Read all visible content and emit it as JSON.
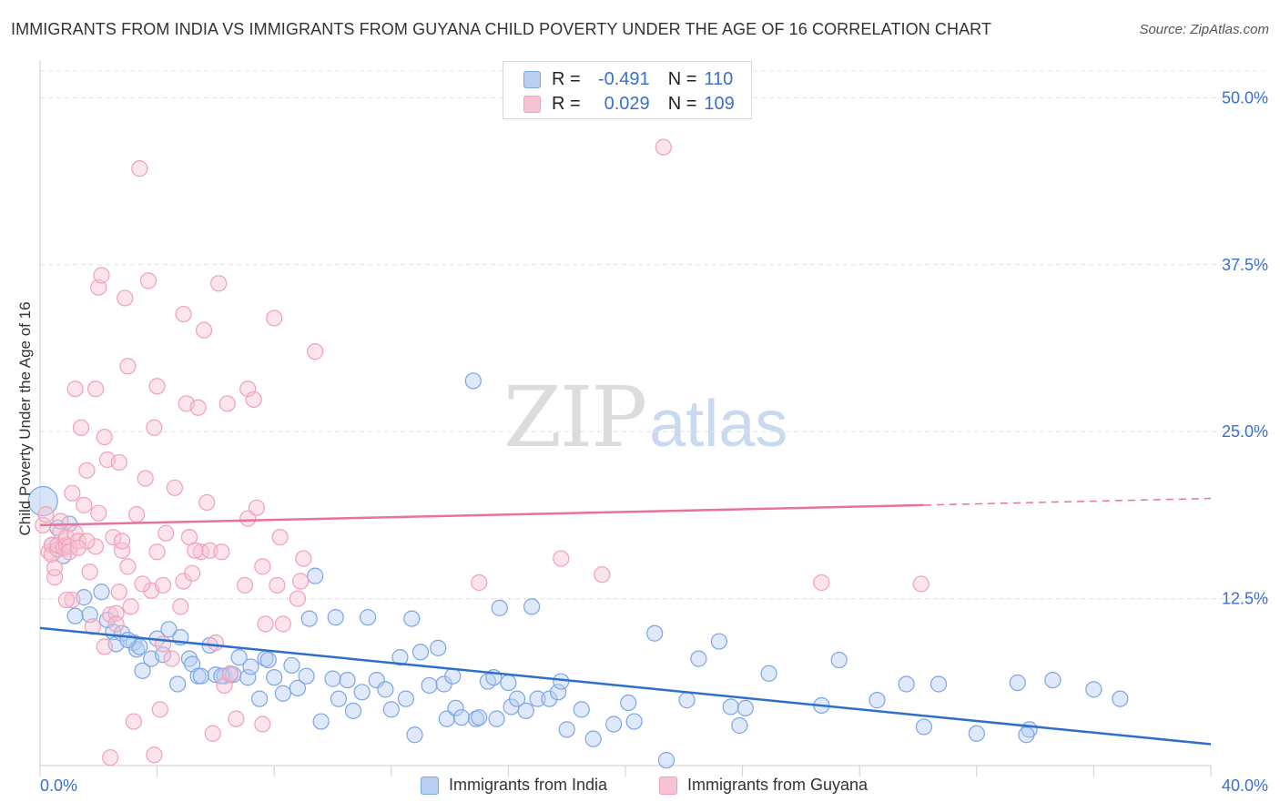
{
  "header": {
    "title": "IMMIGRANTS FROM INDIA VS IMMIGRANTS FROM GUYANA CHILD POVERTY UNDER THE AGE OF 16 CORRELATION CHART",
    "source": "Source: ZipAtlas.com"
  },
  "legend": {
    "india": {
      "r_label": "R =",
      "r_value": "-0.491",
      "n_label": "N =",
      "n_value": "110"
    },
    "guyana": {
      "r_label": "R =",
      "r_value": "0.029",
      "n_label": "N =",
      "n_value": "109"
    }
  },
  "watermark": {
    "zip": "ZIP",
    "atlas": "atlas"
  },
  "chart_data": {
    "type": "scatter",
    "title": "IMMIGRANTS FROM INDIA VS IMMIGRANTS FROM GUYANA CHILD POVERTY UNDER THE AGE OF 16 CORRELATION CHART",
    "xlabel": "",
    "ylabel": "Child Poverty Under the Age of 16",
    "xlim": [
      0,
      40
    ],
    "ylim": [
      0,
      52
    ],
    "x_tick_labels": [
      "0.0%",
      "40.0%"
    ],
    "y_ticks": [
      12.5,
      25.0,
      37.5,
      50.0
    ],
    "y_tick_labels": [
      "12.5%",
      "25.0%",
      "37.5%",
      "50.0%"
    ],
    "grid": true,
    "legend_position": "top-center",
    "series": [
      {
        "name": "Immigrants from India",
        "color": "#7aa6e6",
        "trend_color": "#2e6fcc",
        "trend": {
          "x": [
            0,
            40
          ],
          "y": [
            10.3,
            1.6
          ]
        },
        "points": [
          [
            0.1,
            19.8
          ],
          [
            0.4,
            16.5
          ],
          [
            0.6,
            17.8
          ],
          [
            0.8,
            15.7
          ],
          [
            1.0,
            18.1
          ],
          [
            1.2,
            11.2
          ],
          [
            1.5,
            12.6
          ],
          [
            1.7,
            11.3
          ],
          [
            2.1,
            13.0
          ],
          [
            2.3,
            10.9
          ],
          [
            2.5,
            10.0
          ],
          [
            2.6,
            9.1
          ],
          [
            2.8,
            9.9
          ],
          [
            3.2,
            9.2
          ],
          [
            3.3,
            8.7
          ],
          [
            3.4,
            8.9
          ],
          [
            3.5,
            7.1
          ],
          [
            3.8,
            8.0
          ],
          [
            4.0,
            9.5
          ],
          [
            4.2,
            8.3
          ],
          [
            4.4,
            10.2
          ],
          [
            4.7,
            6.1
          ],
          [
            4.8,
            9.6
          ],
          [
            5.1,
            8.0
          ],
          [
            5.2,
            7.6
          ],
          [
            5.4,
            6.7
          ],
          [
            5.5,
            6.7
          ],
          [
            5.8,
            9.0
          ],
          [
            6.0,
            6.8
          ],
          [
            6.3,
            6.7
          ],
          [
            6.5,
            6.8
          ],
          [
            6.6,
            6.8
          ],
          [
            6.8,
            8.1
          ],
          [
            7.1,
            6.6
          ],
          [
            7.2,
            7.4
          ],
          [
            7.5,
            5.0
          ],
          [
            7.7,
            8.0
          ],
          [
            7.8,
            7.9
          ],
          [
            8.0,
            6.6
          ],
          [
            8.3,
            5.4
          ],
          [
            8.6,
            7.5
          ],
          [
            8.8,
            5.8
          ],
          [
            9.1,
            6.7
          ],
          [
            9.2,
            11.0
          ],
          [
            9.4,
            14.2
          ],
          [
            9.6,
            3.3
          ],
          [
            10.0,
            6.5
          ],
          [
            10.1,
            11.1
          ],
          [
            10.2,
            5.0
          ],
          [
            10.5,
            6.4
          ],
          [
            10.7,
            4.1
          ],
          [
            11.0,
            5.5
          ],
          [
            11.2,
            11.1
          ],
          [
            11.5,
            6.4
          ],
          [
            11.8,
            5.7
          ],
          [
            12.0,
            4.2
          ],
          [
            12.3,
            8.1
          ],
          [
            12.5,
            5.0
          ],
          [
            12.7,
            11.0
          ],
          [
            12.8,
            2.3
          ],
          [
            13.0,
            8.5
          ],
          [
            13.3,
            6.0
          ],
          [
            13.6,
            8.8
          ],
          [
            13.8,
            6.1
          ],
          [
            13.9,
            3.5
          ],
          [
            14.1,
            6.7
          ],
          [
            14.2,
            4.3
          ],
          [
            14.4,
            3.6
          ],
          [
            14.8,
            28.8
          ],
          [
            14.9,
            3.5
          ],
          [
            15.0,
            3.6
          ],
          [
            15.3,
            6.3
          ],
          [
            15.5,
            6.6
          ],
          [
            15.6,
            3.5
          ],
          [
            15.7,
            11.8
          ],
          [
            16.0,
            6.2
          ],
          [
            16.1,
            4.4
          ],
          [
            16.3,
            5.0
          ],
          [
            16.6,
            4.1
          ],
          [
            16.8,
            11.9
          ],
          [
            17.0,
            5.0
          ],
          [
            17.4,
            5.0
          ],
          [
            17.7,
            5.5
          ],
          [
            17.8,
            6.3
          ],
          [
            18.0,
            2.7
          ],
          [
            18.5,
            4.2
          ],
          [
            18.9,
            2.0
          ],
          [
            19.6,
            3.1
          ],
          [
            20.1,
            4.7
          ],
          [
            20.3,
            3.3
          ],
          [
            21.0,
            9.9
          ],
          [
            22.1,
            4.9
          ],
          [
            22.5,
            8.0
          ],
          [
            23.2,
            9.3
          ],
          [
            23.6,
            4.4
          ],
          [
            23.9,
            3.0
          ],
          [
            24.1,
            4.3
          ],
          [
            24.9,
            6.9
          ],
          [
            26.7,
            4.5
          ],
          [
            27.3,
            7.9
          ],
          [
            28.6,
            4.9
          ],
          [
            29.6,
            6.1
          ],
          [
            30.2,
            2.9
          ],
          [
            30.7,
            6.1
          ],
          [
            32.0,
            2.4
          ],
          [
            33.4,
            6.2
          ],
          [
            33.8,
            2.7
          ],
          [
            34.6,
            6.4
          ],
          [
            36.0,
            5.7
          ],
          [
            36.9,
            5.0
          ],
          [
            21.4,
            0.4
          ],
          [
            33.7,
            2.3
          ],
          [
            6.2,
            6.7
          ],
          [
            3.0,
            9.4
          ]
        ]
      },
      {
        "name": "Immigrants from Guyana",
        "color": "#f2a0ba",
        "trend_color": "#e8729b",
        "trend": {
          "x": [
            0,
            30.2
          ],
          "y": [
            18.0,
            19.5
          ]
        },
        "trend_dashed": {
          "x": [
            30.2,
            40
          ],
          "y": [
            19.5,
            20.0
          ]
        },
        "points": [
          [
            0.1,
            18.0
          ],
          [
            0.2,
            18.8
          ],
          [
            0.3,
            16.0
          ],
          [
            0.4,
            16.5
          ],
          [
            0.4,
            15.8
          ],
          [
            0.5,
            14.1
          ],
          [
            0.5,
            14.8
          ],
          [
            0.6,
            16.2
          ],
          [
            0.6,
            16.5
          ],
          [
            0.7,
            17.5
          ],
          [
            0.7,
            18.3
          ],
          [
            0.8,
            16.3
          ],
          [
            0.9,
            16.5
          ],
          [
            0.9,
            17.1
          ],
          [
            1.0,
            16.4
          ],
          [
            1.0,
            16.0
          ],
          [
            1.1,
            12.4
          ],
          [
            1.1,
            20.4
          ],
          [
            1.2,
            17.4
          ],
          [
            1.2,
            28.2
          ],
          [
            1.3,
            16.8
          ],
          [
            1.4,
            25.3
          ],
          [
            1.5,
            19.5
          ],
          [
            1.6,
            22.1
          ],
          [
            1.7,
            14.5
          ],
          [
            1.8,
            10.4
          ],
          [
            1.9,
            16.4
          ],
          [
            1.9,
            28.2
          ],
          [
            2.0,
            18.9
          ],
          [
            2.0,
            35.8
          ],
          [
            2.1,
            36.7
          ],
          [
            2.2,
            24.6
          ],
          [
            2.2,
            8.9
          ],
          [
            2.3,
            22.9
          ],
          [
            2.4,
            11.3
          ],
          [
            2.5,
            17.1
          ],
          [
            2.6,
            11.4
          ],
          [
            2.7,
            13.0
          ],
          [
            2.7,
            22.7
          ],
          [
            2.8,
            16.1
          ],
          [
            2.9,
            35.0
          ],
          [
            3.0,
            14.9
          ],
          [
            3.0,
            29.9
          ],
          [
            3.1,
            11.9
          ],
          [
            3.2,
            3.3
          ],
          [
            3.3,
            18.8
          ],
          [
            3.4,
            44.7
          ],
          [
            3.6,
            21.5
          ],
          [
            3.7,
            36.3
          ],
          [
            3.8,
            13.1
          ],
          [
            3.9,
            25.3
          ],
          [
            4.0,
            16.0
          ],
          [
            4.0,
            28.4
          ],
          [
            4.1,
            4.2
          ],
          [
            4.2,
            13.5
          ],
          [
            4.3,
            17.4
          ],
          [
            4.5,
            8.0
          ],
          [
            4.6,
            20.8
          ],
          [
            4.8,
            11.9
          ],
          [
            4.9,
            13.8
          ],
          [
            4.9,
            33.8
          ],
          [
            5.0,
            27.1
          ],
          [
            5.1,
            17.1
          ],
          [
            5.2,
            14.4
          ],
          [
            5.4,
            26.8
          ],
          [
            5.5,
            16.0
          ],
          [
            5.6,
            32.6
          ],
          [
            5.7,
            19.7
          ],
          [
            5.8,
            16.1
          ],
          [
            5.9,
            2.4
          ],
          [
            6.0,
            9.2
          ],
          [
            6.1,
            36.1
          ],
          [
            6.2,
            16.0
          ],
          [
            6.3,
            6.0
          ],
          [
            6.4,
            27.1
          ],
          [
            6.5,
            6.9
          ],
          [
            6.7,
            3.5
          ],
          [
            7.0,
            13.5
          ],
          [
            7.1,
            18.5
          ],
          [
            7.1,
            28.2
          ],
          [
            7.3,
            27.4
          ],
          [
            7.4,
            19.3
          ],
          [
            7.6,
            3.1
          ],
          [
            7.7,
            10.6
          ],
          [
            8.0,
            33.5
          ],
          [
            8.1,
            13.5
          ],
          [
            8.2,
            17.1
          ],
          [
            8.3,
            10.6
          ],
          [
            8.8,
            12.5
          ],
          [
            8.9,
            13.8
          ],
          [
            9.0,
            15.5
          ],
          [
            9.4,
            31.0
          ],
          [
            17.8,
            15.5
          ],
          [
            15.0,
            13.7
          ],
          [
            19.2,
            14.3
          ],
          [
            21.3,
            46.3
          ],
          [
            30.1,
            13.6
          ],
          [
            26.7,
            13.7
          ],
          [
            2.4,
            0.6
          ],
          [
            3.9,
            0.8
          ],
          [
            2.6,
            10.6
          ],
          [
            1.6,
            16.8
          ],
          [
            0.9,
            12.4
          ],
          [
            2.8,
            16.8
          ],
          [
            3.5,
            13.6
          ],
          [
            4.2,
            9.1
          ],
          [
            5.3,
            16.1
          ],
          [
            7.6,
            14.9
          ],
          [
            1.3,
            16.3
          ]
        ]
      }
    ]
  },
  "bottom_legend": {
    "india": "Immigrants from India",
    "guyana": "Immigrants from Guyana"
  },
  "colors": {
    "india_fill": "#b8cff3",
    "india_stroke": "#7aa6e6",
    "guyana_fill": "#f7c3d3",
    "guyana_stroke": "#f2a0ba",
    "axis_label_blue": "#3a6fd0",
    "grid": "#dddddd"
  }
}
